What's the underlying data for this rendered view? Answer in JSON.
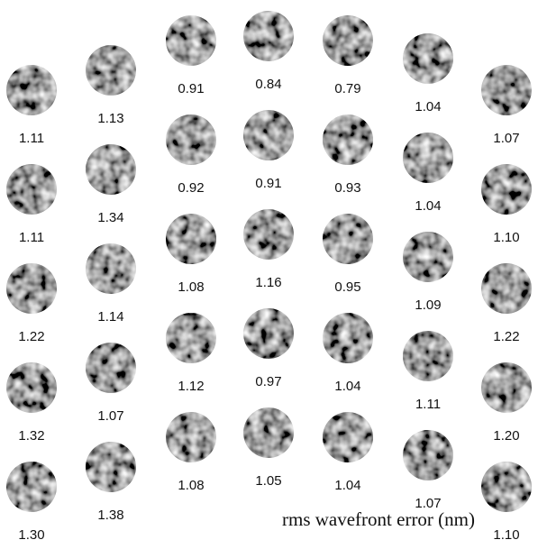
{
  "columns": [
    {
      "labels": [
        "1.11",
        "1.11",
        "1.22",
        "1.32",
        "1.30"
      ]
    },
    {
      "labels": [
        "1.13",
        "1.34",
        "1.14",
        "1.07",
        "1.38"
      ]
    },
    {
      "labels": [
        "0.91",
        "0.92",
        "1.08",
        "1.12",
        "1.08"
      ]
    },
    {
      "labels": [
        "0.84",
        "0.91",
        "1.16",
        "0.97",
        "1.05"
      ]
    },
    {
      "labels": [
        "0.79",
        "0.93",
        "0.95",
        "1.04",
        "1.04"
      ]
    },
    {
      "labels": [
        "1.04",
        "1.04",
        "1.09",
        "1.11",
        "1.07"
      ]
    },
    {
      "labels": [
        "1.07",
        "1.10",
        "1.22",
        "1.20",
        "1.10"
      ]
    }
  ],
  "caption": "rms wavefront error (nm)"
}
